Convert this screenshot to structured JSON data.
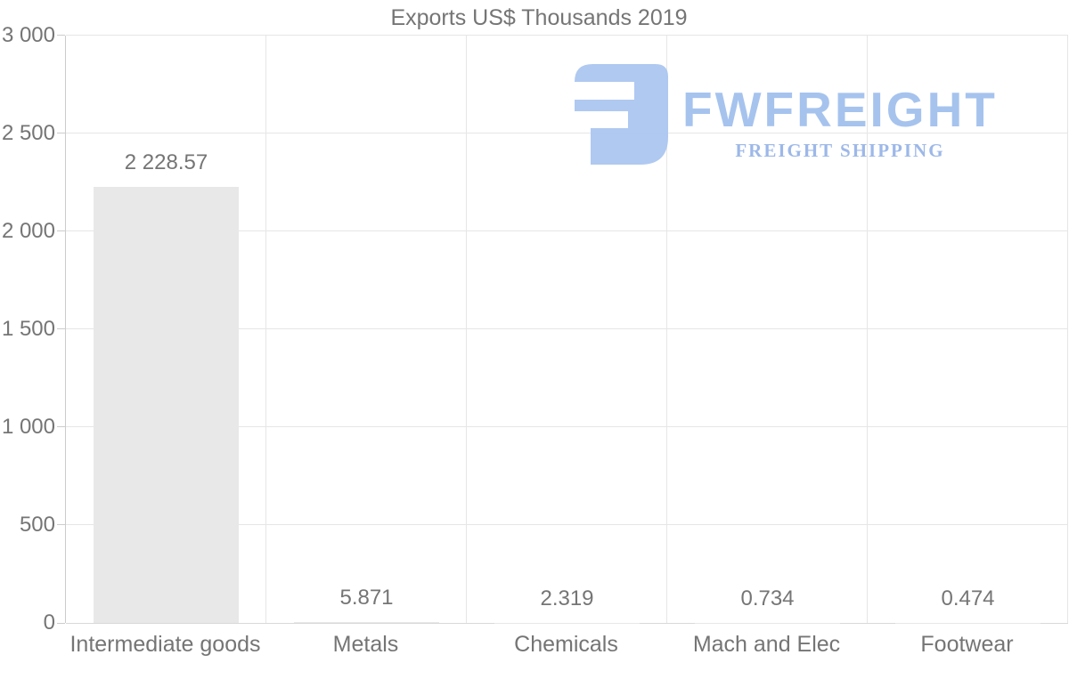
{
  "title": "Exports US$ Thousands 2019",
  "watermark": {
    "brand": "FWFREIGHT",
    "subtitle": "FREIGHT SHIPPING",
    "brand_color": "#a6c3ee",
    "subtitle_color": "#9db8e8",
    "icon_color": "#abc6f0"
  },
  "chart_data": {
    "type": "bar",
    "title": "Exports US$ Thousands 2019",
    "categories": [
      "Intermediate goods",
      "Metals",
      "Chemicals",
      "Mach and Elec",
      "Footwear"
    ],
    "values": [
      2228.57,
      5.871,
      2.319,
      0.734,
      0.474
    ],
    "value_labels": [
      "2 228.57",
      "5.871",
      "2.319",
      "0.734",
      "0.474"
    ],
    "xlabel": "",
    "ylabel": "",
    "ylim": [
      0,
      3000
    ],
    "y_ticks": [
      0,
      500,
      1000,
      1500,
      2000,
      2500,
      3000
    ],
    "y_tick_labels": [
      "0",
      "500",
      "1 000",
      "1 500",
      "2 000",
      "2 500",
      "3 000"
    ],
    "grid": true,
    "legend": false,
    "bar_color": "#e8e8e8",
    "text_color": "#757575",
    "grid_color": "#e6e6e6",
    "axis_color": "#cccccc"
  }
}
